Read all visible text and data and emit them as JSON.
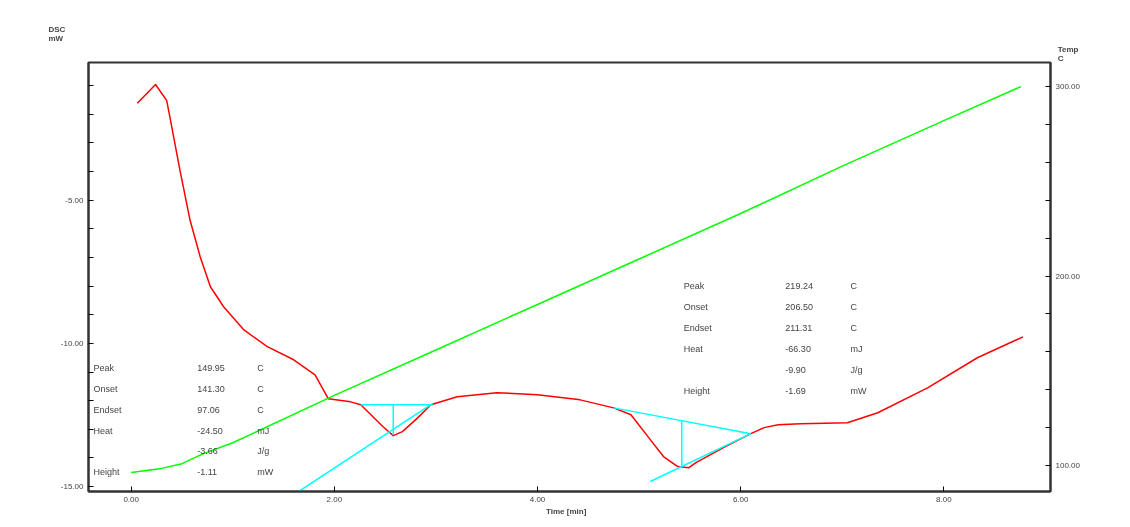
{
  "chart_data": {
    "type": "line",
    "xlabel": "Time    [min]",
    "ylabel": "DSC\nmW",
    "y2label": "Temp\nC",
    "xlim": [
      -0.42,
      9.05
    ],
    "xticks": [
      {
        "value": 0,
        "label": "0.00"
      },
      {
        "value": 2,
        "label": "2.00"
      },
      {
        "value": 4,
        "label": "4.00"
      },
      {
        "value": 6,
        "label": "6.00"
      },
      {
        "value": 8,
        "label": "8.00"
      }
    ],
    "ylim": [
      -15.17,
      -0.19
    ],
    "yticks": [
      {
        "value": -15,
        "label": "-15.00"
      },
      {
        "value": -14,
        "label": null
      },
      {
        "value": -13,
        "label": null
      },
      {
        "value": -12,
        "label": null
      },
      {
        "value": -11,
        "label": null
      },
      {
        "value": -10,
        "label": "-10.00"
      },
      {
        "value": -9,
        "label": null
      },
      {
        "value": -8,
        "label": null
      },
      {
        "value": -7,
        "label": null
      },
      {
        "value": -6,
        "label": null
      },
      {
        "value": -5,
        "label": "-5.00"
      },
      {
        "value": -4,
        "label": null
      },
      {
        "value": -3,
        "label": null
      },
      {
        "value": -2,
        "label": null
      },
      {
        "value": -1,
        "label": null
      }
    ],
    "y2lim": [
      86.3,
      312.7
    ],
    "y2ticks": [
      {
        "value": 100,
        "label": "100.00"
      },
      {
        "value": 120,
        "label": null
      },
      {
        "value": 140,
        "label": null
      },
      {
        "value": 160,
        "label": null
      },
      {
        "value": 180,
        "label": null
      },
      {
        "value": 200,
        "label": "200.00"
      },
      {
        "value": 220,
        "label": null
      },
      {
        "value": 240,
        "label": null
      },
      {
        "value": 260,
        "label": null
      },
      {
        "value": 280,
        "label": null
      },
      {
        "value": 300,
        "label": "300.00"
      }
    ],
    "grid": false,
    "series": [
      {
        "color": "#ff0000",
        "x": [
          0.06,
          0.24,
          0.35,
          0.4,
          0.48,
          0.58,
          0.68,
          0.78,
          0.91,
          1.11,
          1.34,
          1.6,
          1.81,
          1.94,
          2.16,
          2.26,
          2.48,
          2.58,
          2.67,
          2.82,
          2.95,
          3.21,
          3.6,
          4.0,
          4.42,
          4.75,
          4.92,
          5.11,
          5.24,
          5.38,
          5.49,
          5.56,
          5.83,
          6.1,
          6.23,
          6.37,
          6.59,
          7.05,
          7.35,
          7.84,
          8.33,
          8.78
        ],
        "values": [
          -1.61,
          -0.96,
          -1.52,
          -2.45,
          -3.95,
          -5.7,
          -6.98,
          -8.02,
          -8.72,
          -9.53,
          -10.11,
          -10.57,
          -11.1,
          -11.93,
          -12.04,
          -12.14,
          -12.91,
          -13.22,
          -13.08,
          -12.6,
          -12.14,
          -11.86,
          -11.72,
          -11.79,
          -11.97,
          -12.25,
          -12.49,
          -13.36,
          -13.95,
          -14.3,
          -14.34,
          -14.16,
          -13.64,
          -13.15,
          -12.94,
          -12.84,
          -12.8,
          -12.77,
          -12.42,
          -11.55,
          -10.5,
          -9.77
        ]
      },
      {
        "color": "#00ff00",
        "axis": "y2",
        "x": [
          0,
          0.3,
          0.5,
          0.7,
          1,
          2,
          3,
          4,
          5,
          6,
          7,
          8,
          8.76
        ],
        "values": [
          96.3,
          98.5,
          101,
          106,
          112,
          137,
          161,
          185,
          209,
          233,
          258,
          282,
          300
        ]
      },
      {
        "color": "#00ffff",
        "x": [
          2.26,
          2.97
        ],
        "values": [
          -12.14,
          -12.14
        ]
      },
      {
        "color": "#00ffff",
        "x": [
          2.58,
          2.58
        ],
        "values": [
          -12.14,
          -13.2
        ]
      },
      {
        "color": "#00ffff",
        "x": [
          1.65,
          2.95
        ],
        "values": [
          -15.17,
          -12.14
        ]
      },
      {
        "color": "#00ffff",
        "x": [
          4.75,
          6.1
        ],
        "values": [
          -12.25,
          -13.15
        ]
      },
      {
        "color": "#00ffff",
        "x": [
          5.42,
          5.42
        ],
        "values": [
          -12.69,
          -14.3
        ]
      },
      {
        "color": "#00ffff",
        "x": [
          5.11,
          6.1
        ],
        "values": [
          -14.82,
          -13.15
        ]
      }
    ],
    "annotations": [
      "Peak\t149.95\tC",
      "Onset\t141.30\tC",
      "Endset\t97.06\tC",
      "Heat\t-24.50\tmJ",
      "\t-3.66\tJ/g",
      "Height\t-1.11\tmW",
      "Peak\t219.24\tC",
      "Onset\t206.50\tC",
      "Endset\t211.31\tC",
      "Heat\t-66.30\tmJ",
      "\t-9.90\tJ/g",
      "Height\t-1.69\tmW"
    ]
  }
}
